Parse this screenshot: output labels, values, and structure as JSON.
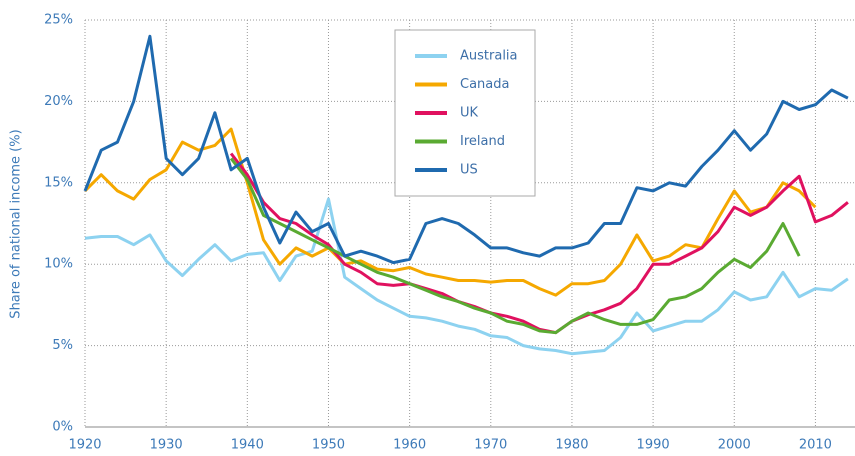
{
  "chart_data": {
    "type": "line",
    "y_label": "Share of national income (%)",
    "x": [
      1920,
      1922,
      1924,
      1926,
      1928,
      1930,
      1932,
      1934,
      1936,
      1938,
      1940,
      1942,
      1944,
      1946,
      1948,
      1950,
      1952,
      1954,
      1956,
      1958,
      1960,
      1962,
      1964,
      1966,
      1968,
      1970,
      1972,
      1974,
      1976,
      1978,
      1980,
      1982,
      1984,
      1986,
      1988,
      1990,
      1992,
      1994,
      1996,
      1998,
      2000,
      2002,
      2004,
      2006,
      2008,
      2010,
      2012,
      2014
    ],
    "xlim": [
      1920,
      2015
    ],
    "xticks": [
      1920,
      1930,
      1940,
      1950,
      1960,
      1970,
      1980,
      1990,
      2000,
      2010
    ],
    "ylim": [
      0,
      25
    ],
    "yticks": [
      {
        "value": 0,
        "label": "0%"
      },
      {
        "value": 5,
        "label": "5%"
      },
      {
        "value": 10,
        "label": "10%"
      },
      {
        "value": 15,
        "label": "15%"
      },
      {
        "value": 20,
        "label": "20%"
      },
      {
        "value": 25,
        "label": "25%"
      }
    ],
    "grid": true,
    "series": [
      {
        "name": "Australia",
        "color": "#8dd2f0",
        "values": [
          11.6,
          11.7,
          11.7,
          11.2,
          11.8,
          10.2,
          9.3,
          10.3,
          11.2,
          10.2,
          10.6,
          10.7,
          9.0,
          10.5,
          10.8,
          14.0,
          9.2,
          8.5,
          7.8,
          7.3,
          6.8,
          6.7,
          6.5,
          6.2,
          6.0,
          5.6,
          5.5,
          5.0,
          4.8,
          4.7,
          4.5,
          4.6,
          4.7,
          5.5,
          7.0,
          5.9,
          6.2,
          6.5,
          6.5,
          7.2,
          8.3,
          7.8,
          8.0,
          9.5,
          8.0,
          8.5,
          8.4,
          9.1
        ]
      },
      {
        "name": "Canada",
        "color": "#f5a800",
        "values": [
          14.5,
          15.5,
          14.5,
          14.0,
          15.2,
          15.8,
          17.5,
          17.0,
          17.3,
          18.3,
          15.0,
          11.5,
          10.0,
          11.0,
          10.5,
          11.0,
          10.0,
          10.2,
          9.7,
          9.6,
          9.8,
          9.4,
          9.2,
          9.0,
          9.0,
          8.9,
          9.0,
          9.0,
          8.5,
          8.1,
          8.8,
          8.8,
          9.0,
          10.0,
          11.8,
          10.2,
          10.5,
          11.2,
          11.0,
          12.8,
          14.5,
          13.2,
          13.5,
          15.0,
          14.5,
          13.5,
          null,
          null
        ]
      },
      {
        "name": "UK",
        "color": "#e0115f",
        "values": [
          null,
          null,
          null,
          null,
          null,
          null,
          null,
          null,
          null,
          16.8,
          15.5,
          13.8,
          12.8,
          12.5,
          11.8,
          11.2,
          10.0,
          9.5,
          8.8,
          8.7,
          8.8,
          8.5,
          8.2,
          7.7,
          7.4,
          7.0,
          6.8,
          6.5,
          6.0,
          5.8,
          6.5,
          6.9,
          7.2,
          7.6,
          8.5,
          10.0,
          10.0,
          10.5,
          11.0,
          12.0,
          13.5,
          13.0,
          13.5,
          14.5,
          15.4,
          12.6,
          13.0,
          13.8
        ]
      },
      {
        "name": "Ireland",
        "color": "#5aaa32",
        "values": [
          null,
          null,
          null,
          null,
          null,
          null,
          null,
          null,
          null,
          16.5,
          15.2,
          13.0,
          12.5,
          12.0,
          11.5,
          11.0,
          10.5,
          10.0,
          9.5,
          9.2,
          8.8,
          8.4,
          8.0,
          7.7,
          7.3,
          7.0,
          6.5,
          6.3,
          5.9,
          5.8,
          6.5,
          7.0,
          6.6,
          6.3,
          6.3,
          6.6,
          7.8,
          8.0,
          8.5,
          9.5,
          10.3,
          9.8,
          10.8,
          12.5,
          10.5,
          null,
          null,
          null
        ]
      },
      {
        "name": "US",
        "color": "#1f6aaf",
        "values": [
          14.5,
          17.0,
          17.5,
          20.0,
          24.0,
          16.5,
          15.5,
          16.5,
          19.3,
          15.8,
          16.5,
          13.5,
          11.3,
          13.2,
          12.0,
          12.5,
          10.5,
          10.8,
          10.5,
          10.1,
          10.3,
          12.5,
          12.8,
          12.5,
          11.8,
          11.0,
          11.0,
          10.7,
          10.5,
          11.0,
          11.0,
          11.3,
          12.5,
          12.5,
          14.7,
          14.5,
          15.0,
          14.8,
          16.0,
          17.0,
          18.2,
          17.0,
          18.0,
          20.0,
          19.5,
          19.8,
          20.7,
          20.2
        ]
      }
    ]
  }
}
